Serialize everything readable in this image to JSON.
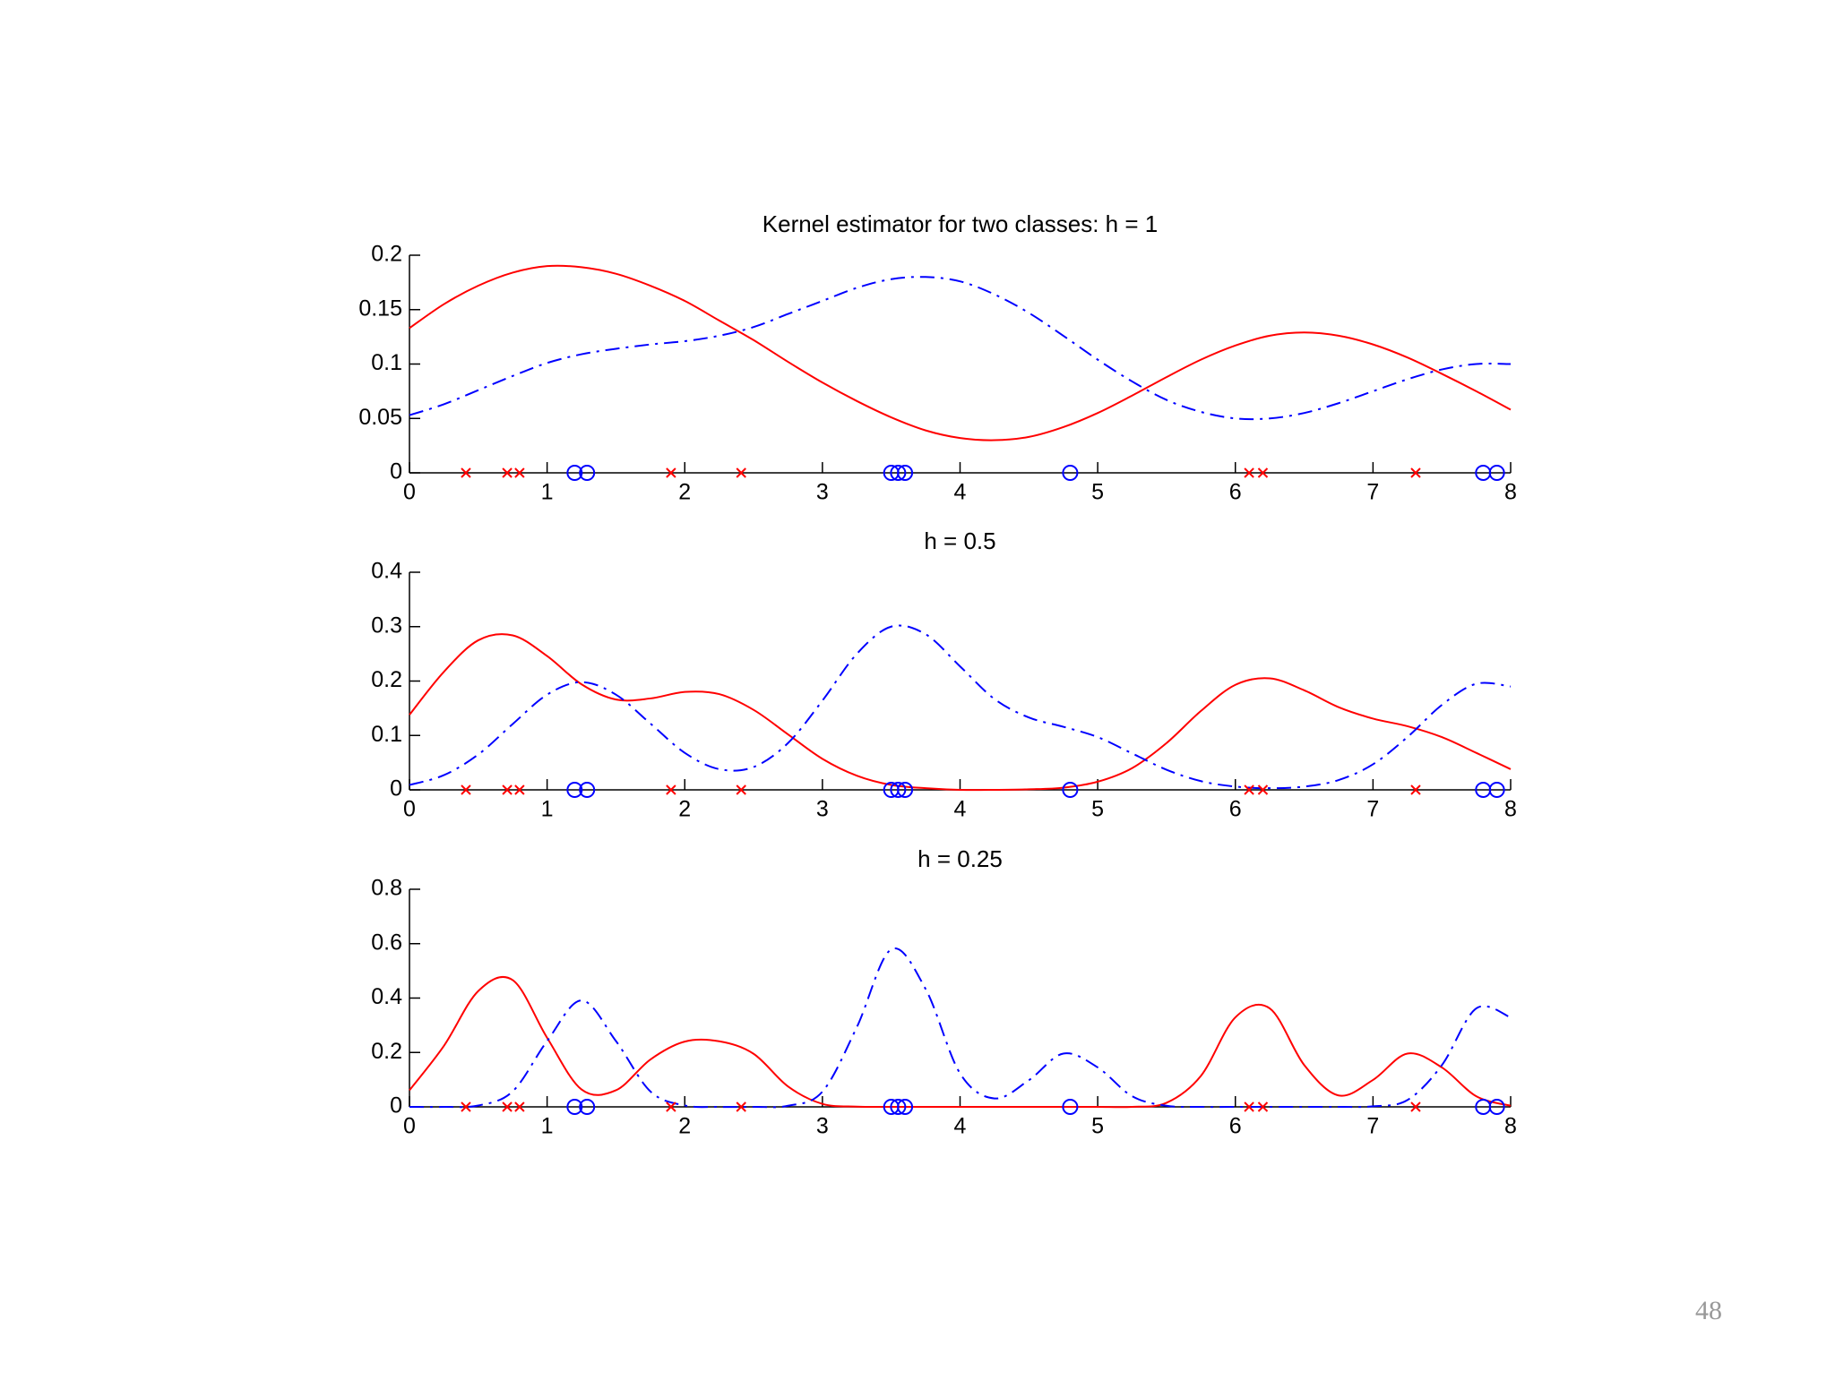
{
  "chart_data": [
    {
      "type": "line",
      "title": "Kernel estimator for two classes: h = 1",
      "x": [
        0,
        0.25,
        0.5,
        0.75,
        1,
        1.25,
        1.5,
        1.75,
        2,
        2.25,
        2.5,
        2.75,
        3,
        3.25,
        3.5,
        3.75,
        4,
        4.25,
        4.5,
        4.75,
        5,
        5.25,
        5.5,
        5.75,
        6,
        6.25,
        6.5,
        6.75,
        7,
        7.25,
        7.5,
        7.75,
        8
      ],
      "series": [
        {
          "color": "#ff0000",
          "style": "solid",
          "values": [
            0.133,
            0.155,
            0.172,
            0.184,
            0.19,
            0.189,
            0.183,
            0.172,
            0.158,
            0.14,
            0.122,
            0.102,
            0.083,
            0.066,
            0.051,
            0.039,
            0.032,
            0.03,
            0.033,
            0.042,
            0.055,
            0.071,
            0.088,
            0.104,
            0.117,
            0.126,
            0.129,
            0.126,
            0.118,
            0.106,
            0.091,
            0.075,
            0.058
          ]
        },
        {
          "color": "#0000ff",
          "style": "dashdot",
          "values": [
            0.053,
            0.063,
            0.076,
            0.089,
            0.101,
            0.109,
            0.114,
            0.118,
            0.121,
            0.126,
            0.134,
            0.146,
            0.158,
            0.17,
            0.178,
            0.18,
            0.176,
            0.164,
            0.147,
            0.126,
            0.104,
            0.084,
            0.067,
            0.056,
            0.05,
            0.05,
            0.055,
            0.064,
            0.075,
            0.086,
            0.095,
            0.1,
            0.1
          ]
        }
      ],
      "samples": [
        {
          "color": "#ff0000",
          "marker": "x",
          "x": [
            0.41,
            0.71,
            0.8,
            1.9,
            2.41,
            6.1,
            6.2,
            7.31
          ],
          "values": [
            0,
            0,
            0,
            0,
            0,
            0,
            0,
            0
          ]
        },
        {
          "color": "#0000ff",
          "marker": "o",
          "x": [
            1.2,
            1.29,
            3.5,
            3.55,
            3.6,
            4.8,
            7.8,
            7.9
          ],
          "values": [
            0,
            0,
            0,
            0,
            0,
            0,
            0,
            0
          ]
        }
      ],
      "xlim": [
        0,
        8
      ],
      "ylim": [
        0,
        0.2
      ],
      "xticks": [
        0,
        1,
        2,
        3,
        4,
        5,
        6,
        7,
        8
      ],
      "yticks": [
        0,
        0.05,
        0.1,
        0.15,
        0.2
      ]
    },
    {
      "type": "line",
      "title": "h = 0.5",
      "x": [
        0,
        0.25,
        0.5,
        0.75,
        1,
        1.25,
        1.5,
        1.75,
        2,
        2.25,
        2.5,
        2.75,
        3,
        3.25,
        3.5,
        3.75,
        4,
        4.25,
        4.5,
        4.75,
        5,
        5.25,
        5.5,
        5.75,
        6,
        6.25,
        6.5,
        6.75,
        7,
        7.25,
        7.5,
        7.75,
        8
      ],
      "series": [
        {
          "color": "#ff0000",
          "style": "solid",
          "values": [
            0.138,
            0.217,
            0.275,
            0.284,
            0.246,
            0.194,
            0.166,
            0.168,
            0.18,
            0.176,
            0.147,
            0.102,
            0.057,
            0.026,
            0.009,
            0.003,
            0,
            0,
            0.001,
            0.004,
            0.015,
            0.04,
            0.086,
            0.145,
            0.193,
            0.205,
            0.183,
            0.152,
            0.131,
            0.117,
            0.097,
            0.068,
            0.038
          ]
        },
        {
          "color": "#0000ff",
          "style": "dashdot",
          "values": [
            0.009,
            0.027,
            0.065,
            0.121,
            0.175,
            0.198,
            0.175,
            0.122,
            0.068,
            0.038,
            0.042,
            0.086,
            0.164,
            0.25,
            0.3,
            0.286,
            0.227,
            0.167,
            0.133,
            0.116,
            0.097,
            0.067,
            0.037,
            0.016,
            0.006,
            0.003,
            0.006,
            0.018,
            0.047,
            0.097,
            0.156,
            0.195,
            0.19
          ]
        }
      ],
      "samples": [
        {
          "color": "#ff0000",
          "marker": "x",
          "x": [
            0.41,
            0.71,
            0.8,
            1.9,
            2.41,
            6.1,
            6.2,
            7.31
          ],
          "values": [
            0,
            0,
            0,
            0,
            0,
            0,
            0,
            0
          ]
        },
        {
          "color": "#0000ff",
          "marker": "o",
          "x": [
            1.2,
            1.29,
            3.5,
            3.55,
            3.6,
            4.8,
            7.8,
            7.9
          ],
          "values": [
            0,
            0,
            0,
            0,
            0,
            0,
            0,
            0
          ]
        }
      ],
      "xlim": [
        0,
        8
      ],
      "ylim": [
        0,
        0.4
      ],
      "xticks": [
        0,
        1,
        2,
        3,
        4,
        5,
        6,
        7,
        8
      ],
      "yticks": [
        0,
        0.1,
        0.2,
        0.3,
        0.4
      ]
    },
    {
      "type": "line",
      "title": "h = 0.25",
      "x": [
        0,
        0.25,
        0.5,
        0.75,
        1,
        1.25,
        1.5,
        1.75,
        2,
        2.25,
        2.5,
        2.75,
        3,
        3.25,
        3.5,
        3.75,
        4,
        4.25,
        4.5,
        4.75,
        5,
        5.25,
        5.5,
        5.75,
        6,
        6.25,
        6.5,
        6.75,
        7,
        7.25,
        7.5,
        7.75,
        8
      ],
      "series": [
        {
          "color": "#ff0000",
          "style": "solid",
          "values": [
            0.061,
            0.224,
            0.426,
            0.466,
            0.254,
            0.064,
            0.061,
            0.174,
            0.24,
            0.241,
            0.195,
            0.075,
            0.011,
            0.001,
            0,
            0,
            0,
            0,
            0,
            0,
            0,
            0,
            0.015,
            0.114,
            0.329,
            0.362,
            0.154,
            0.042,
            0.099,
            0.196,
            0.145,
            0.039,
            0.004
          ]
        },
        {
          "color": "#0000ff",
          "style": "dashdot",
          "values": [
            0,
            0,
            0.005,
            0.057,
            0.242,
            0.391,
            0.242,
            0.057,
            0.005,
            0,
            0,
            0.004,
            0.056,
            0.293,
            0.579,
            0.433,
            0.123,
            0.031,
            0.098,
            0.196,
            0.145,
            0.039,
            0.004,
            0,
            0,
            0,
            0,
            0,
            0.002,
            0.025,
            0.153,
            0.362,
            0.329
          ]
        }
      ],
      "samples": [
        {
          "color": "#ff0000",
          "marker": "x",
          "x": [
            0.41,
            0.71,
            0.8,
            1.9,
            2.41,
            6.1,
            6.2,
            7.31
          ],
          "values": [
            0,
            0,
            0,
            0,
            0,
            0,
            0,
            0
          ]
        },
        {
          "color": "#0000ff",
          "marker": "o",
          "x": [
            1.2,
            1.29,
            3.5,
            3.55,
            3.6,
            4.8,
            7.8,
            7.9
          ],
          "values": [
            0,
            0,
            0,
            0,
            0,
            0,
            0,
            0
          ]
        }
      ],
      "xlim": [
        0,
        8
      ],
      "ylim": [
        0,
        0.8
      ],
      "xticks": [
        0,
        1,
        2,
        3,
        4,
        5,
        6,
        7,
        8
      ],
      "yticks": [
        0,
        0.2,
        0.4,
        0.6,
        0.8
      ]
    }
  ],
  "slide": {
    "page_number": "48"
  }
}
